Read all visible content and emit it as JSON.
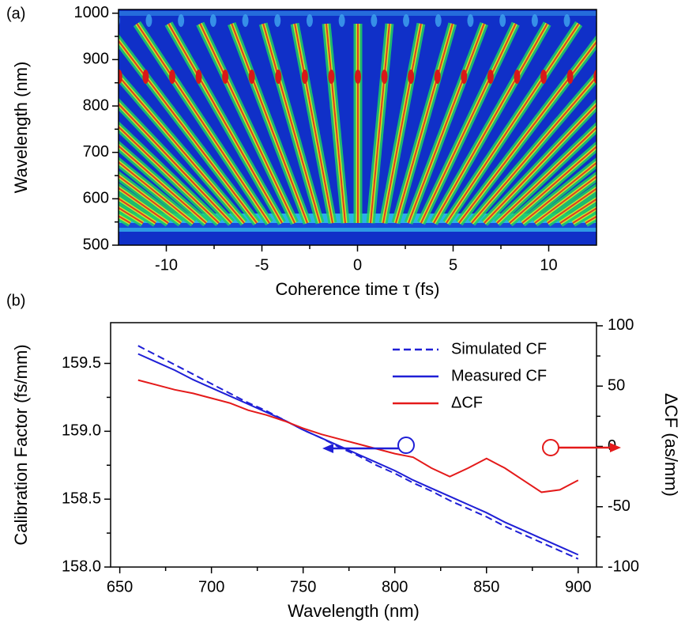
{
  "chart_data": [
    {
      "type": "heatmap",
      "panel_label": "(a)",
      "x_label": "Coherence time τ (fs)",
      "y_label": "Wavelength (nm)",
      "xlim": [
        -12.5,
        12.5
      ],
      "xticks": [
        -10,
        -5,
        0,
        5,
        10
      ],
      "ylim": [
        500,
        1008
      ],
      "yticks": [
        500,
        600,
        700,
        800,
        900,
        1000
      ]
    },
    {
      "type": "line",
      "panel_label": "(b)",
      "x_label": "Wavelength (nm)",
      "y_label": "Calibration Factor (fs/mm)",
      "y2_label": "ΔCF (as/mm)",
      "xlim": [
        645,
        910
      ],
      "xticks": [
        650,
        700,
        750,
        800,
        850,
        900
      ],
      "ylim": [
        158.0,
        159.8
      ],
      "yticks": [
        {
          "value": 158.0,
          "label": "158.0"
        },
        {
          "value": 158.5,
          "label": "158.5"
        },
        {
          "value": 159.0,
          "label": "159.0"
        },
        {
          "value": 159.5,
          "label": "159.5"
        }
      ],
      "y2lim": [
        -100,
        102.6
      ],
      "y2ticks": [
        -100,
        -50,
        0,
        50,
        100
      ],
      "legend": "upper right",
      "x": [
        660,
        670,
        680,
        690,
        700,
        710,
        720,
        730,
        740,
        750,
        760,
        770,
        780,
        790,
        800,
        810,
        820,
        830,
        840,
        850,
        860,
        870,
        880,
        890,
        900
      ],
      "series": [
        {
          "name": "Simulated CF",
          "color": "#1f1fd6",
          "linestyle": "dashed",
          "values": [
            159.63,
            159.56,
            159.49,
            159.42,
            159.35,
            159.28,
            159.21,
            159.15,
            159.08,
            159.01,
            158.95,
            158.88,
            158.82,
            158.75,
            158.69,
            158.62,
            158.56,
            158.49,
            158.43,
            158.37,
            158.3,
            158.24,
            158.18,
            158.12,
            158.06
          ]
        },
        {
          "name": "Measured CF",
          "color": "#1f1fd6",
          "linestyle": "solid",
          "values": [
            159.57,
            159.51,
            159.45,
            159.38,
            159.32,
            159.26,
            159.2,
            159.14,
            159.08,
            159.01,
            158.95,
            158.89,
            158.83,
            158.77,
            158.71,
            158.64,
            158.58,
            158.52,
            158.46,
            158.4,
            158.33,
            158.27,
            158.21,
            158.15,
            158.09
          ]
        },
        {
          "name": "ΔCF",
          "color": "#e41a1a",
          "linestyle": "solid",
          "axis": "y2",
          "values": [
            55,
            51,
            47,
            44,
            40,
            36,
            30,
            26,
            21,
            15,
            10,
            6,
            2,
            -2,
            -6,
            -9,
            -18,
            -25,
            -18,
            -10,
            -18,
            -28,
            -38,
            -36,
            -28
          ]
        }
      ]
    }
  ]
}
